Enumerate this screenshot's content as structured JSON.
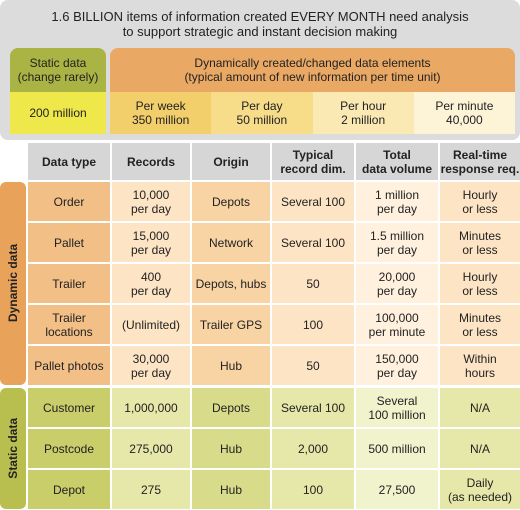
{
  "header": {
    "title": [
      "1.6 BILLION items of information created EVERY MONTH need analysis",
      "to support strategic and instant decision making"
    ]
  },
  "legend": {
    "static": {
      "label": [
        "Static data",
        "(change rarely)"
      ],
      "volume": "200 million"
    },
    "dynamic": {
      "label": [
        "Dynamically created/changed data elements",
        "(typical amount of new information per time unit)"
      ],
      "rates": [
        [
          "Per week",
          "350 million"
        ],
        [
          "Per day",
          "50 million"
        ],
        [
          "Per hour",
          "2 million"
        ],
        [
          "Per minute",
          "40,000"
        ]
      ]
    }
  },
  "table": {
    "columns": [
      [
        "Data type"
      ],
      [
        "Records"
      ],
      [
        "Origin"
      ],
      [
        "Typical",
        "record dim."
      ],
      [
        "Total",
        "data volume"
      ],
      [
        "Real-time",
        "response req."
      ]
    ],
    "groups": [
      {
        "label": "Dynamic data",
        "rows": [
          [
            [
              "Order"
            ],
            [
              "10,000",
              "per day"
            ],
            [
              "Depots"
            ],
            [
              "Several 100"
            ],
            [
              "1 million",
              "per day"
            ],
            [
              "Hourly",
              "or less"
            ]
          ],
          [
            [
              "Pallet"
            ],
            [
              "15,000",
              "per day"
            ],
            [
              "Network"
            ],
            [
              "Several 100"
            ],
            [
              "1.5 million",
              "per day"
            ],
            [
              "Minutes",
              "or less"
            ]
          ],
          [
            [
              "Trailer"
            ],
            [
              "400",
              "per day"
            ],
            [
              "Depots, hubs"
            ],
            [
              "50"
            ],
            [
              "20,000",
              "per day"
            ],
            [
              "Hourly",
              "or less"
            ]
          ],
          [
            [
              "Trailer",
              "locations"
            ],
            [
              "(Unlimited)"
            ],
            [
              "Trailer GPS"
            ],
            [
              "100"
            ],
            [
              "100,000",
              "per minute"
            ],
            [
              "Minutes",
              "or less"
            ]
          ],
          [
            [
              "Pallet photos"
            ],
            [
              "30,000",
              "per day"
            ],
            [
              "Hub"
            ],
            [
              "50"
            ],
            [
              "150,000",
              "per day"
            ],
            [
              "Within",
              "hours"
            ]
          ]
        ]
      },
      {
        "label": "Static data",
        "rows": [
          [
            [
              "Customer"
            ],
            [
              "1,000,000"
            ],
            [
              "Depots"
            ],
            [
              "Several 100"
            ],
            [
              "Several",
              "100 million"
            ],
            [
              "N/A"
            ]
          ],
          [
            [
              "Postcode"
            ],
            [
              "275,000"
            ],
            [
              "Hub"
            ],
            [
              "2,000"
            ],
            [
              "500 million"
            ],
            [
              "N/A"
            ]
          ],
          [
            [
              "Depot"
            ],
            [
              "275"
            ],
            [
              "Hub"
            ],
            [
              "100"
            ],
            [
              "27,500"
            ],
            [
              "Daily",
              "(as needed)"
            ]
          ]
        ]
      }
    ]
  }
}
